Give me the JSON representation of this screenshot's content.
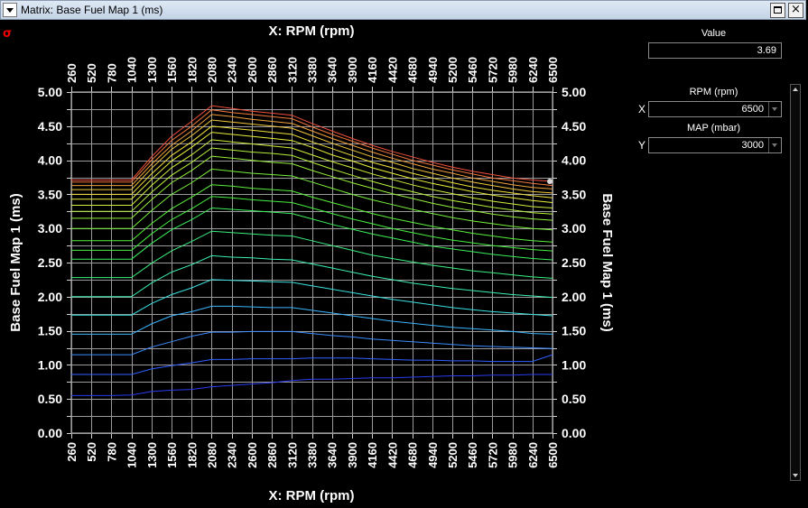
{
  "window": {
    "title": "Matrix: Base Fuel Map 1 (ms)",
    "menu_icon": "chevron-down-icon",
    "maximize_icon": "maximize-icon",
    "close_label": "×"
  },
  "toolbar": {
    "sigma_icon": "sigma-icon",
    "sigma_glyph": "σ"
  },
  "side_panel": {
    "value_label": "Value",
    "value": "3.69",
    "x_axis": {
      "letter": "X",
      "label": "RPM (rpm)",
      "value": "6500"
    },
    "y_axis": {
      "letter": "Y",
      "label": "MAP (mbar)",
      "value": "3000"
    }
  },
  "chart_data": {
    "type": "line",
    "xlabel": "X: RPM (rpm)",
    "ylabel": "Base Fuel Map 1 (ms)",
    "x": [
      260,
      520,
      780,
      1040,
      1300,
      1560,
      1820,
      2080,
      2340,
      2600,
      2860,
      3120,
      3380,
      3640,
      3900,
      4160,
      4420,
      4680,
      4940,
      5200,
      5460,
      5720,
      5980,
      6240,
      6500
    ],
    "ylim": [
      0,
      5
    ],
    "yticks": [
      "0.00",
      "0.50",
      "1.00",
      "1.50",
      "2.00",
      "2.50",
      "3.00",
      "3.50",
      "4.00",
      "4.50",
      "5.00"
    ],
    "grid": true,
    "selected_point": {
      "x": 6500,
      "y": 3.69
    },
    "series": [
      {
        "color": "#2a3cf0",
        "values": [
          0.55,
          0.55,
          0.55,
          0.56,
          0.61,
          0.63,
          0.64,
          0.68,
          0.7,
          0.72,
          0.74,
          0.77,
          0.79,
          0.79,
          0.8,
          0.81,
          0.81,
          0.82,
          0.83,
          0.84,
          0.84,
          0.85,
          0.85,
          0.86,
          0.86
        ]
      },
      {
        "color": "#3060ff",
        "values": [
          0.86,
          0.86,
          0.86,
          0.86,
          0.94,
          0.99,
          1.03,
          1.08,
          1.08,
          1.09,
          1.09,
          1.09,
          1.1,
          1.1,
          1.1,
          1.09,
          1.08,
          1.07,
          1.07,
          1.06,
          1.06,
          1.05,
          1.05,
          1.05,
          1.15
        ]
      },
      {
        "color": "#3c8cff",
        "values": [
          1.15,
          1.15,
          1.15,
          1.15,
          1.26,
          1.34,
          1.42,
          1.48,
          1.48,
          1.49,
          1.49,
          1.49,
          1.46,
          1.43,
          1.41,
          1.38,
          1.36,
          1.34,
          1.32,
          1.3,
          1.28,
          1.27,
          1.26,
          1.25,
          1.24
        ]
      },
      {
        "color": "#3cb4ff",
        "values": [
          1.45,
          1.45,
          1.45,
          1.45,
          1.6,
          1.72,
          1.78,
          1.86,
          1.86,
          1.85,
          1.84,
          1.84,
          1.8,
          1.76,
          1.72,
          1.68,
          1.64,
          1.61,
          1.58,
          1.55,
          1.53,
          1.51,
          1.49,
          1.46,
          1.45
        ]
      },
      {
        "color": "#3ce0e0",
        "values": [
          1.73,
          1.73,
          1.73,
          1.73,
          1.9,
          2.03,
          2.13,
          2.25,
          2.24,
          2.23,
          2.22,
          2.21,
          2.16,
          2.11,
          2.06,
          2.01,
          1.96,
          1.92,
          1.88,
          1.84,
          1.81,
          1.78,
          1.76,
          1.74,
          1.72
        ]
      },
      {
        "color": "#3cf0b0",
        "values": [
          2.0,
          2.0,
          2.0,
          2.0,
          2.2,
          2.36,
          2.47,
          2.6,
          2.58,
          2.57,
          2.55,
          2.54,
          2.48,
          2.42,
          2.36,
          2.3,
          2.25,
          2.2,
          2.16,
          2.12,
          2.09,
          2.06,
          2.03,
          2.01,
          1.99
        ]
      },
      {
        "color": "#3cf080",
        "values": [
          2.28,
          2.28,
          2.28,
          2.28,
          2.49,
          2.67,
          2.81,
          2.96,
          2.94,
          2.92,
          2.9,
          2.89,
          2.82,
          2.75,
          2.68,
          2.61,
          2.56,
          2.51,
          2.46,
          2.42,
          2.38,
          2.35,
          2.32,
          2.29,
          2.27
        ]
      },
      {
        "color": "#3cf05a",
        "values": [
          2.55,
          2.55,
          2.55,
          2.55,
          2.78,
          2.98,
          3.13,
          3.3,
          3.28,
          3.26,
          3.24,
          3.22,
          3.14,
          3.06,
          2.99,
          2.92,
          2.86,
          2.8,
          2.74,
          2.7,
          2.66,
          2.62,
          2.59,
          2.56,
          2.54
        ]
      },
      {
        "color": "#46f040",
        "values": [
          2.68,
          2.68,
          2.68,
          2.68,
          2.92,
          3.13,
          3.29,
          3.47,
          3.45,
          3.42,
          3.4,
          3.38,
          3.3,
          3.22,
          3.14,
          3.07,
          3.0,
          2.94,
          2.88,
          2.83,
          2.79,
          2.75,
          2.72,
          2.69,
          2.67
        ]
      },
      {
        "color": "#5af03c",
        "values": [
          2.82,
          2.82,
          2.82,
          2.82,
          3.07,
          3.29,
          3.46,
          3.64,
          3.62,
          3.59,
          3.57,
          3.55,
          3.46,
          3.38,
          3.3,
          3.22,
          3.15,
          3.09,
          3.03,
          2.98,
          2.93,
          2.89,
          2.85,
          2.82,
          2.8
        ]
      },
      {
        "color": "#78f03c",
        "values": [
          3.0,
          3.0,
          3.0,
          3.0,
          3.26,
          3.5,
          3.67,
          3.87,
          3.84,
          3.81,
          3.79,
          3.77,
          3.68,
          3.59,
          3.5,
          3.42,
          3.35,
          3.28,
          3.22,
          3.16,
          3.11,
          3.07,
          3.03,
          3.0,
          2.98
        ]
      },
      {
        "color": "#96f03c",
        "values": [
          3.15,
          3.15,
          3.15,
          3.15,
          3.42,
          3.67,
          3.85,
          4.06,
          4.03,
          4.0,
          3.97,
          3.95,
          3.85,
          3.76,
          3.67,
          3.59,
          3.51,
          3.44,
          3.37,
          3.31,
          3.26,
          3.21,
          3.17,
          3.14,
          3.12
        ]
      },
      {
        "color": "#b4f03c",
        "values": [
          3.25,
          3.25,
          3.25,
          3.25,
          3.53,
          3.78,
          3.97,
          4.18,
          4.15,
          4.12,
          4.1,
          4.07,
          3.97,
          3.87,
          3.78,
          3.69,
          3.61,
          3.54,
          3.47,
          3.41,
          3.36,
          3.31,
          3.27,
          3.23,
          3.21
        ]
      },
      {
        "color": "#d2f03c",
        "values": [
          3.34,
          3.34,
          3.34,
          3.34,
          3.63,
          3.89,
          4.08,
          4.3,
          4.27,
          4.24,
          4.21,
          4.18,
          4.08,
          3.98,
          3.89,
          3.8,
          3.72,
          3.64,
          3.57,
          3.51,
          3.45,
          3.4,
          3.36,
          3.32,
          3.3
        ]
      },
      {
        "color": "#e8f03c",
        "values": [
          3.43,
          3.43,
          3.43,
          3.43,
          3.72,
          3.99,
          4.19,
          4.41,
          4.38,
          4.35,
          4.32,
          4.29,
          4.19,
          4.08,
          3.99,
          3.89,
          3.81,
          3.73,
          3.66,
          3.6,
          3.54,
          3.49,
          3.45,
          3.41,
          3.38
        ]
      },
      {
        "color": "#f0e03c",
        "values": [
          3.5,
          3.5,
          3.5,
          3.5,
          3.8,
          4.07,
          4.27,
          4.5,
          4.47,
          4.44,
          4.41,
          4.38,
          4.27,
          4.17,
          4.07,
          3.97,
          3.89,
          3.81,
          3.74,
          3.67,
          3.61,
          3.56,
          3.52,
          3.48,
          3.45
        ]
      },
      {
        "color": "#f0c83c",
        "values": [
          3.57,
          3.57,
          3.57,
          3.57,
          3.88,
          4.16,
          4.36,
          4.59,
          4.56,
          4.53,
          4.5,
          4.47,
          4.36,
          4.25,
          4.15,
          4.05,
          3.97,
          3.88,
          3.81,
          3.74,
          3.68,
          3.63,
          3.58,
          3.54,
          3.52
        ]
      },
      {
        "color": "#f0a03c",
        "values": [
          3.63,
          3.63,
          3.63,
          3.63,
          3.94,
          4.22,
          4.43,
          4.67,
          4.64,
          4.6,
          4.57,
          4.54,
          4.43,
          4.32,
          4.22,
          4.12,
          4.03,
          3.95,
          3.87,
          3.81,
          3.74,
          3.69,
          3.64,
          3.6,
          3.58
        ]
      },
      {
        "color": "#f0783c",
        "values": [
          3.68,
          3.68,
          3.68,
          3.68,
          4.0,
          4.29,
          4.5,
          4.74,
          4.7,
          4.67,
          4.64,
          4.61,
          4.49,
          4.38,
          4.28,
          4.18,
          4.09,
          4.0,
          3.93,
          3.86,
          3.8,
          3.74,
          3.7,
          3.66,
          3.63
        ]
      },
      {
        "color": "#f0503c",
        "values": [
          3.71,
          3.71,
          3.71,
          3.71,
          4.05,
          4.35,
          4.57,
          4.8,
          4.76,
          4.72,
          4.69,
          4.66,
          4.54,
          4.43,
          4.32,
          4.22,
          4.13,
          4.05,
          3.97,
          3.9,
          3.84,
          3.79,
          3.74,
          3.71,
          3.69
        ]
      }
    ]
  }
}
